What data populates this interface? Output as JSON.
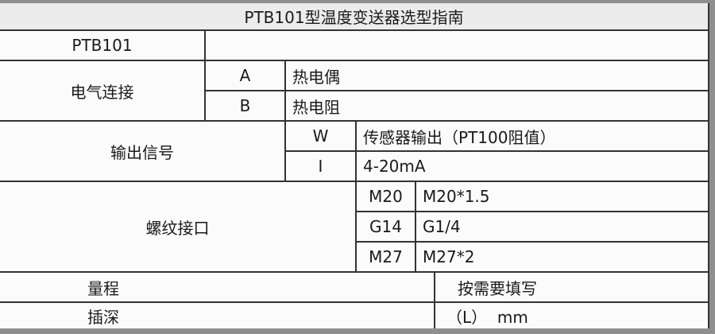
{
  "title": "PTB101型温度变送器选型指南",
  "model": {
    "label": "PTB101",
    "value": ""
  },
  "electrical": {
    "label": "电气连接",
    "options": [
      {
        "code": "A",
        "desc": "热电偶"
      },
      {
        "code": "B",
        "desc": "热电阻"
      }
    ]
  },
  "output": {
    "label": "输出信号",
    "options": [
      {
        "code": "W",
        "desc": "传感器输出（PT100阻值）"
      },
      {
        "code": "I",
        "desc": "4-20mA"
      }
    ]
  },
  "thread": {
    "label": "螺纹接口",
    "options": [
      {
        "code": "M20",
        "desc": "M20*1.5"
      },
      {
        "code": "G14",
        "desc": "G1/4"
      },
      {
        "code": "M27",
        "desc": "M27*2"
      }
    ]
  },
  "range": {
    "label": "量程",
    "value": "按需要填写"
  },
  "depth": {
    "label": "插深",
    "value": "（L）  mm"
  }
}
